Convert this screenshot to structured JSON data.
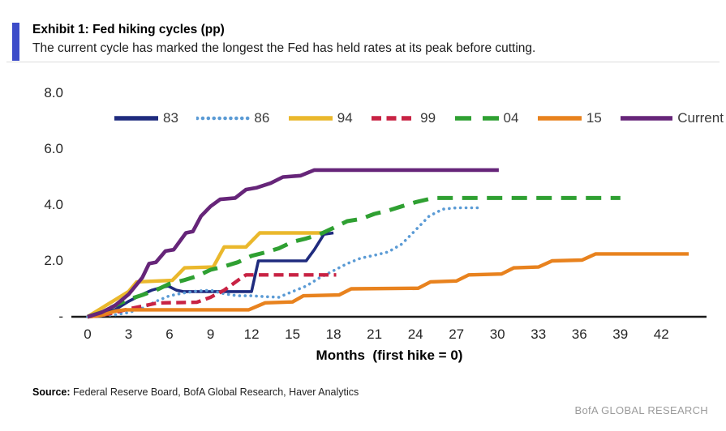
{
  "header": {
    "exhibit_label": "Exhibit 1: Fed hiking cycles (pp)",
    "subtitle": "The current cycle has marked the longest the Fed has held rates at its peak before cutting.",
    "accent_color": "#3d4cc9"
  },
  "chart_data": {
    "type": "line",
    "title": "Exhibit 1: Fed hiking cycles (pp)",
    "xlabel": "Months  (first hike = 0)",
    "ylabel": "",
    "xlim": [
      0,
      44.5
    ],
    "ylim": [
      0,
      8
    ],
    "grid": false,
    "legend_position": "top",
    "x_ticks": [
      0,
      3,
      6,
      9,
      12,
      15,
      18,
      21,
      24,
      27,
      30,
      33,
      36,
      39,
      42
    ],
    "y_ticks": [
      {
        "value": 8,
        "label": "8.0"
      },
      {
        "value": 6,
        "label": "6.0"
      },
      {
        "value": 4,
        "label": "4.0"
      },
      {
        "value": 2,
        "label": "2.0"
      },
      {
        "value": 0,
        "label": "-"
      }
    ],
    "series": [
      {
        "name": "83",
        "color": "#1f2b7e",
        "style": "solid",
        "points": [
          [
            0,
            0
          ],
          [
            1,
            0.1
          ],
          [
            2,
            0.25
          ],
          [
            3,
            0.55
          ],
          [
            4,
            0.8
          ],
          [
            4.7,
            0.95
          ],
          [
            5.4,
            1.05
          ],
          [
            5.9,
            1.1
          ],
          [
            6.5,
            0.95
          ],
          [
            7,
            0.9
          ],
          [
            12,
            0.9
          ],
          [
            12.5,
            2.0
          ],
          [
            16,
            2.0
          ],
          [
            16.6,
            2.4
          ],
          [
            17.3,
            2.95
          ],
          [
            18,
            3.0
          ]
        ]
      },
      {
        "name": "86",
        "color": "#5b9bd5",
        "style": "dotted",
        "points": [
          [
            0,
            0
          ],
          [
            1,
            0.05
          ],
          [
            2,
            0.07
          ],
          [
            3,
            0.15
          ],
          [
            4,
            0.3
          ],
          [
            5,
            0.55
          ],
          [
            6,
            0.75
          ],
          [
            7,
            0.85
          ],
          [
            8,
            0.92
          ],
          [
            9,
            0.95
          ],
          [
            10,
            0.82
          ],
          [
            11,
            0.75
          ],
          [
            12,
            0.75
          ],
          [
            13,
            0.72
          ],
          [
            14,
            0.7
          ],
          [
            15,
            0.9
          ],
          [
            16,
            1.1
          ],
          [
            17,
            1.4
          ],
          [
            18,
            1.65
          ],
          [
            19,
            1.9
          ],
          [
            20,
            2.1
          ],
          [
            21,
            2.2
          ],
          [
            22,
            2.32
          ],
          [
            23,
            2.6
          ],
          [
            24,
            3.1
          ],
          [
            25,
            3.6
          ],
          [
            26,
            3.85
          ],
          [
            27,
            3.9
          ],
          [
            28.6,
            3.9
          ]
        ]
      },
      {
        "name": "94",
        "color": "#eab82c",
        "style": "solid",
        "points": [
          [
            0,
            0
          ],
          [
            1,
            0.3
          ],
          [
            2,
            0.6
          ],
          [
            3,
            0.9
          ],
          [
            3.6,
            1.25
          ],
          [
            6.2,
            1.3
          ],
          [
            7.1,
            1.75
          ],
          [
            9.2,
            1.78
          ],
          [
            10,
            2.5
          ],
          [
            11.6,
            2.5
          ],
          [
            12.6,
            3.0
          ],
          [
            17.3,
            3.0
          ]
        ]
      },
      {
        "name": "99",
        "color": "#c82344",
        "style": "dashed",
        "points": [
          [
            0,
            0
          ],
          [
            1,
            0.05
          ],
          [
            2,
            0.15
          ],
          [
            3,
            0.28
          ],
          [
            4,
            0.38
          ],
          [
            5,
            0.48
          ],
          [
            5.5,
            0.5
          ],
          [
            8,
            0.52
          ],
          [
            9,
            0.7
          ],
          [
            10,
            0.95
          ],
          [
            11,
            1.3
          ],
          [
            11.6,
            1.5
          ],
          [
            18.2,
            1.5
          ]
        ]
      },
      {
        "name": "04",
        "color": "#2fa032",
        "style": "longdash",
        "points": [
          [
            0,
            0
          ],
          [
            1,
            0.15
          ],
          [
            2,
            0.4
          ],
          [
            3,
            0.62
          ],
          [
            4,
            0.78
          ],
          [
            5,
            0.95
          ],
          [
            6,
            1.18
          ],
          [
            7,
            1.3
          ],
          [
            8,
            1.45
          ],
          [
            9,
            1.68
          ],
          [
            10,
            1.8
          ],
          [
            11,
            1.95
          ],
          [
            12,
            2.18
          ],
          [
            13,
            2.3
          ],
          [
            14,
            2.45
          ],
          [
            15,
            2.68
          ],
          [
            16,
            2.8
          ],
          [
            17,
            2.95
          ],
          [
            18,
            3.18
          ],
          [
            19,
            3.42
          ],
          [
            20,
            3.5
          ],
          [
            21,
            3.68
          ],
          [
            22,
            3.8
          ],
          [
            23,
            3.95
          ],
          [
            24,
            4.1
          ],
          [
            25.3,
            4.25
          ],
          [
            39,
            4.25
          ]
        ]
      },
      {
        "name": "15",
        "color": "#e8821e",
        "style": "solid",
        "points": [
          [
            0,
            0
          ],
          [
            1,
            0.05
          ],
          [
            2,
            0.2
          ],
          [
            2.7,
            0.25
          ],
          [
            11.8,
            0.25
          ],
          [
            13,
            0.5
          ],
          [
            15,
            0.53
          ],
          [
            15.8,
            0.75
          ],
          [
            18.4,
            0.78
          ],
          [
            19.3,
            1.0
          ],
          [
            24.2,
            1.02
          ],
          [
            25.1,
            1.25
          ],
          [
            27,
            1.28
          ],
          [
            27.9,
            1.5
          ],
          [
            30.3,
            1.53
          ],
          [
            31.2,
            1.75
          ],
          [
            33,
            1.78
          ],
          [
            34,
            2.0
          ],
          [
            36.2,
            2.03
          ],
          [
            37.2,
            2.25
          ],
          [
            44,
            2.25
          ]
        ]
      },
      {
        "name": "Current",
        "color": "#662579",
        "style": "solid",
        "points": [
          [
            0,
            0
          ],
          [
            1,
            0.15
          ],
          [
            2,
            0.4
          ],
          [
            3,
            0.8
          ],
          [
            4,
            1.4
          ],
          [
            4.5,
            1.9
          ],
          [
            5,
            1.95
          ],
          [
            5.7,
            2.35
          ],
          [
            6.3,
            2.4
          ],
          [
            7.2,
            3.0
          ],
          [
            7.7,
            3.05
          ],
          [
            8.3,
            3.6
          ],
          [
            9,
            3.95
          ],
          [
            9.7,
            4.2
          ],
          [
            10.8,
            4.25
          ],
          [
            11.6,
            4.55
          ],
          [
            12.4,
            4.62
          ],
          [
            13.4,
            4.78
          ],
          [
            14.3,
            5.0
          ],
          [
            15.6,
            5.05
          ],
          [
            16.6,
            5.25
          ],
          [
            30.1,
            5.25
          ]
        ]
      }
    ]
  },
  "footer": {
    "source_label": "Source:",
    "source_text": " Federal Reserve Board, BofA Global Research, Haver Analytics",
    "watermark": "BofA GLOBAL RESEARCH"
  }
}
